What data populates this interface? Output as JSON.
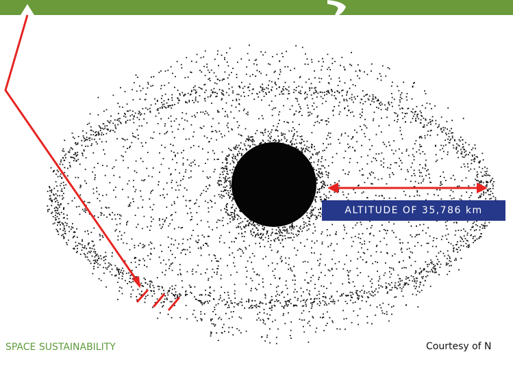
{
  "diagram": {
    "label": "ALTITUDE OF 35,786 km",
    "credit": "Courtesy of N",
    "footer": "SPACE SUSTAINABILITY"
  }
}
